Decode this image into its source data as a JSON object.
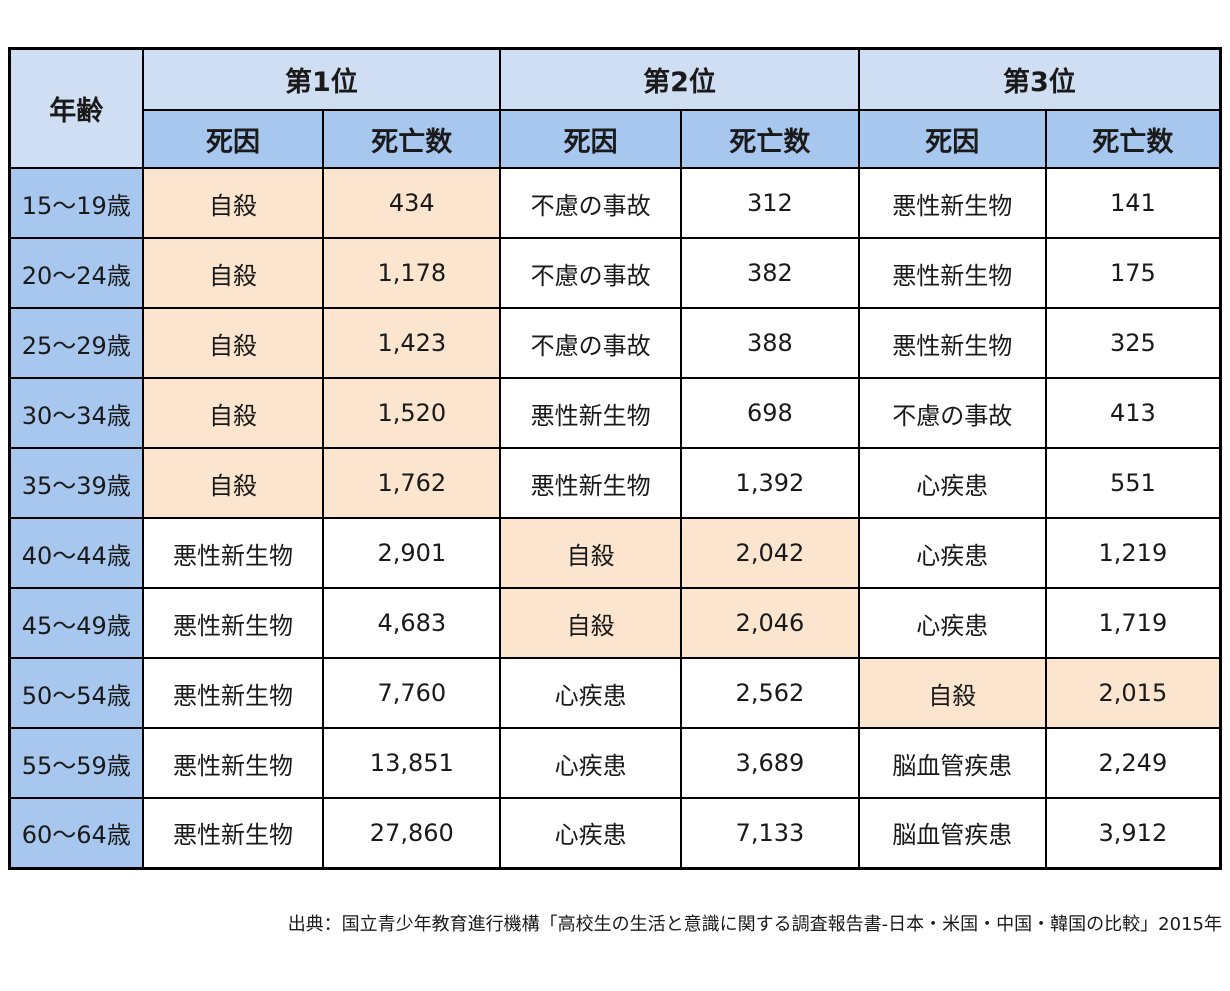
{
  "colors": {
    "header_light_blue": "#cfdef2",
    "header_medium_blue": "#a8c7ee",
    "age_cell_blue": "#a8c7ee",
    "highlight_orange": "#fbe5ce",
    "border_black": "#000000",
    "text": "#1a1a1a",
    "background": "#ffffff"
  },
  "table": {
    "header": {
      "age_label": "年齢",
      "rank_labels": [
        "第1位",
        "第2位",
        "第3位"
      ],
      "cause_label": "死因",
      "deaths_label": "死亡数"
    },
    "rows": [
      {
        "age": "15〜19歳",
        "ranks": [
          {
            "cause": "自殺",
            "deaths": "434",
            "highlight": true
          },
          {
            "cause": "不慮の事故",
            "deaths": "312",
            "highlight": false
          },
          {
            "cause": "悪性新生物",
            "deaths": "141",
            "highlight": false
          }
        ]
      },
      {
        "age": "20〜24歳",
        "ranks": [
          {
            "cause": "自殺",
            "deaths": "1,178",
            "highlight": true
          },
          {
            "cause": "不慮の事故",
            "deaths": "382",
            "highlight": false
          },
          {
            "cause": "悪性新生物",
            "deaths": "175",
            "highlight": false
          }
        ]
      },
      {
        "age": "25〜29歳",
        "ranks": [
          {
            "cause": "自殺",
            "deaths": "1,423",
            "highlight": true
          },
          {
            "cause": "不慮の事故",
            "deaths": "388",
            "highlight": false
          },
          {
            "cause": "悪性新生物",
            "deaths": "325",
            "highlight": false
          }
        ]
      },
      {
        "age": "30〜34歳",
        "ranks": [
          {
            "cause": "自殺",
            "deaths": "1,520",
            "highlight": true
          },
          {
            "cause": "悪性新生物",
            "deaths": "698",
            "highlight": false
          },
          {
            "cause": "不慮の事故",
            "deaths": "413",
            "highlight": false
          }
        ]
      },
      {
        "age": "35〜39歳",
        "ranks": [
          {
            "cause": "自殺",
            "deaths": "1,762",
            "highlight": true
          },
          {
            "cause": "悪性新生物",
            "deaths": "1,392",
            "highlight": false
          },
          {
            "cause": "心疾患",
            "deaths": "551",
            "highlight": false
          }
        ]
      },
      {
        "age": "40〜44歳",
        "ranks": [
          {
            "cause": "悪性新生物",
            "deaths": "2,901",
            "highlight": false
          },
          {
            "cause": "自殺",
            "deaths": "2,042",
            "highlight": true
          },
          {
            "cause": "心疾患",
            "deaths": "1,219",
            "highlight": false
          }
        ]
      },
      {
        "age": "45〜49歳",
        "ranks": [
          {
            "cause": "悪性新生物",
            "deaths": "4,683",
            "highlight": false
          },
          {
            "cause": "自殺",
            "deaths": "2,046",
            "highlight": true
          },
          {
            "cause": "心疾患",
            "deaths": "1,719",
            "highlight": false
          }
        ]
      },
      {
        "age": "50〜54歳",
        "ranks": [
          {
            "cause": "悪性新生物",
            "deaths": "7,760",
            "highlight": false
          },
          {
            "cause": "心疾患",
            "deaths": "2,562",
            "highlight": false
          },
          {
            "cause": "自殺",
            "deaths": "2,015",
            "highlight": true
          }
        ]
      },
      {
        "age": "55〜59歳",
        "ranks": [
          {
            "cause": "悪性新生物",
            "deaths": "13,851",
            "highlight": false
          },
          {
            "cause": "心疾患",
            "deaths": "3,689",
            "highlight": false
          },
          {
            "cause": "脳血管疾患",
            "deaths": "2,249",
            "highlight": false
          }
        ]
      },
      {
        "age": "60〜64歳",
        "ranks": [
          {
            "cause": "悪性新生物",
            "deaths": "27,860",
            "highlight": false
          },
          {
            "cause": "心疾患",
            "deaths": "7,133",
            "highlight": false
          },
          {
            "cause": "脳血管疾患",
            "deaths": "3,912",
            "highlight": false
          }
        ]
      }
    ]
  },
  "footer": {
    "source": "出典：国立青少年教育進行機構「高校生の生活と意識に関する調査報告書-日本・米国・中国・韓国の比較」2015年"
  },
  "chart_data": {
    "type": "table",
    "title": "",
    "columns": [
      "年齢",
      "第1位 死因",
      "第1位 死亡数",
      "第2位 死因",
      "第2位 死亡数",
      "第3位 死因",
      "第3位 死亡数"
    ],
    "rows": [
      [
        "15〜19歳",
        "自殺",
        434,
        "不慮の事故",
        312,
        "悪性新生物",
        141
      ],
      [
        "20〜24歳",
        "自殺",
        1178,
        "不慮の事故",
        382,
        "悪性新生物",
        175
      ],
      [
        "25〜29歳",
        "自殺",
        1423,
        "不慮の事故",
        388,
        "悪性新生物",
        325
      ],
      [
        "30〜34歳",
        "自殺",
        1520,
        "悪性新生物",
        698,
        "不慮の事故",
        413
      ],
      [
        "35〜39歳",
        "自殺",
        1762,
        "悪性新生物",
        1392,
        "心疾患",
        551
      ],
      [
        "40〜44歳",
        "悪性新生物",
        2901,
        "自殺",
        2042,
        "心疾患",
        1219
      ],
      [
        "45〜49歳",
        "悪性新生物",
        4683,
        "自殺",
        2046,
        "心疾患",
        1719
      ],
      [
        "50〜54歳",
        "悪性新生物",
        7760,
        "心疾患",
        2562,
        "自殺",
        2015
      ],
      [
        "55〜59歳",
        "悪性新生物",
        13851,
        "心疾患",
        3689,
        "脳血管疾患",
        2249
      ],
      [
        "60〜64歳",
        "悪性新生物",
        27860,
        "心疾患",
        7133,
        "脳血管疾患",
        3912
      ]
    ],
    "highlighted_cells_note": "自殺 (suicide) cause+deaths cells shaded orange in rows 15〜19 through 35〜39 (rank1), 40〜44 and 45〜49 (rank2), 50〜54 (rank3)",
    "source": "出典：国立青少年教育進行機構「高校生の生活と意識に関する調査報告書-日本・米国・中国・韓国の比較」2015年"
  }
}
